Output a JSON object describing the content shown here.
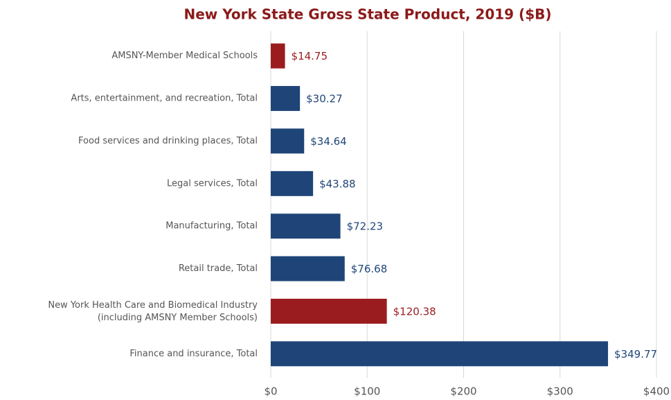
{
  "chart_data": {
    "type": "barh",
    "title": "New York State Gross State Product, 2019 ($B)",
    "categories": [
      "AMSNY-Member Medical Schools",
      "Arts, entertainment, and recreation, Total",
      "Food services and drinking places, Total",
      "Legal services, Total",
      "Manufacturing, Total",
      "Retail trade, Total",
      "New York Health Care and Biomedical Industry\n(including AMSNY Member Schools)",
      "Finance and insurance, Total"
    ],
    "values": [
      14.75,
      30.27,
      34.64,
      43.88,
      72.23,
      76.68,
      120.38,
      349.77
    ],
    "value_labels": [
      "$14.75",
      "$30.27",
      "$34.64",
      "$43.88",
      "$72.23",
      "$76.68",
      "$120.38",
      "$349.77"
    ],
    "colors": [
      "#9b1c1f",
      "#1f4578",
      "#1f4578",
      "#1f4578",
      "#1f4578",
      "#1f4578",
      "#9b1c1f",
      "#1f4578"
    ],
    "xlim": [
      0,
      400
    ],
    "xticks": [
      {
        "value": 0,
        "label": "$0"
      },
      {
        "value": 100,
        "label": "$100"
      },
      {
        "value": 200,
        "label": "$200"
      },
      {
        "value": 300,
        "label": "$300"
      },
      {
        "value": 400,
        "label": "$400"
      }
    ],
    "grid": true
  }
}
